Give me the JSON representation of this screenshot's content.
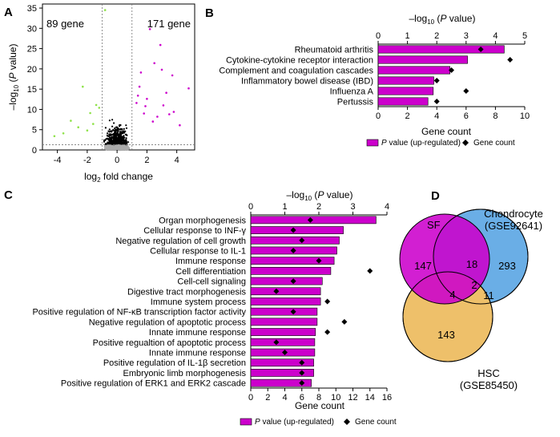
{
  "panel_labels": {
    "a": "A",
    "b": "B",
    "c": "C",
    "d": "D"
  },
  "chart_data": [
    {
      "type": "scatter",
      "panel": "A",
      "xlabel_main": "log",
      "xlabel_sub": "2",
      "xlabel_rest": " fold change",
      "ylabel_pre": "–log",
      "ylabel_sub": "10",
      "ylabel_open": " (",
      "ylabel_p": "P",
      "ylabel_rest": " value)",
      "xlim": [
        -5,
        5.2
      ],
      "ylim": [
        0,
        36
      ],
      "xticks": [
        "-4",
        "-2",
        "0",
        "2",
        "4"
      ],
      "yticks": [
        "0",
        "5",
        "10",
        "15",
        "20",
        "25",
        "30",
        "35"
      ],
      "down_label": "89 gene",
      "up_label": "171 gene",
      "down_color": "#8fe24a",
      "up_color": "#cc00cc",
      "fc_threshold": 1,
      "p_threshold": 1.3
    },
    {
      "type": "bar",
      "panel": "B",
      "title_pre": "–log",
      "title_sub": "10",
      "title_open": " (",
      "title_p": "P",
      "title_rest": " value)",
      "top_ticks": [
        "0",
        "1",
        "2",
        "3",
        "4",
        "5"
      ],
      "top_range": [
        0,
        5
      ],
      "bottom_label": "Gene count",
      "bottom_ticks": [
        "0",
        "2",
        "4",
        "6",
        "8",
        "10"
      ],
      "bottom_range": [
        0,
        10
      ],
      "categories": [
        "Rheumatoid arthritis",
        "Cytokine-cytokine receptor interaction",
        "Complement and coagulation cascades",
        "Inflammatory bowel disease (IBD)",
        "Influenza A",
        "Pertussis"
      ],
      "neglog10_p": [
        4.3,
        3.05,
        2.45,
        1.9,
        1.88,
        1.7
      ],
      "gene_count": [
        7,
        9,
        5,
        4,
        6,
        4
      ],
      "legend_bar": " value (up-regulated)",
      "legend_bar_p": "P",
      "legend_marker": "Gene count",
      "bar_color": "#cc00cc"
    },
    {
      "type": "bar",
      "panel": "C",
      "title_pre": "–log",
      "title_sub": "10",
      "title_open": " (",
      "title_p": "P",
      "title_rest": " value)",
      "top_ticks": [
        "0",
        "1",
        "2",
        "3",
        "4"
      ],
      "top_range": [
        0,
        4
      ],
      "bottom_label": "Gene count",
      "bottom_ticks": [
        "0",
        "2",
        "4",
        "6",
        "8",
        "10",
        "12",
        "14",
        "16"
      ],
      "bottom_range": [
        0,
        16
      ],
      "categories": [
        "Organ morphogenesis",
        "Cellular response to INF-γ",
        "Negative regulation of cell growth",
        "Cellular response to IL-1",
        "Immune response",
        "Cell differentiation",
        "Cell-cell signaling",
        "Digestive tract morphogenesis",
        "Immune system process",
        "Positive regulation of NF-κB transcription factor activity",
        "Negative regulation of apoptotic process",
        "Innate immune response",
        "Positive regualtion of apoptotic process",
        "Innate immune response",
        "Positive regulation of IL-1β secretion",
        "Embryonic limb morphogenesis",
        "Positive regulation of ERK1 and ERK2 cascade"
      ],
      "neglog10_p": [
        3.68,
        2.72,
        2.6,
        2.53,
        2.45,
        2.35,
        2.1,
        2.05,
        2.05,
        1.95,
        1.95,
        1.9,
        1.88,
        1.88,
        1.85,
        1.85,
        1.78
      ],
      "gene_count": [
        7,
        5,
        6,
        5,
        8,
        14,
        5,
        3,
        9,
        5,
        11,
        9,
        3,
        4,
        6,
        6,
        6
      ],
      "legend_bar": " value (up-regulated)",
      "legend_bar_p": "P",
      "legend_marker": "Gene count",
      "bar_color": "#cc00cc"
    }
  ],
  "venn": {
    "sets": [
      {
        "name": "SF",
        "sub": "",
        "color": "#cc00cc"
      },
      {
        "name": "Chondrocyte",
        "sub": "(GSE92641)",
        "color": "#6aaee6"
      },
      {
        "name": "HSC",
        "sub": "(GSE85450)",
        "color": "#eec06a"
      }
    ],
    "regions": {
      "sf_only": "147",
      "chondro_only": "293",
      "hsc_only": "143",
      "sf_chondro": "18",
      "sf_hsc": "4",
      "chondro_hsc": "11",
      "all_three": "2"
    }
  }
}
